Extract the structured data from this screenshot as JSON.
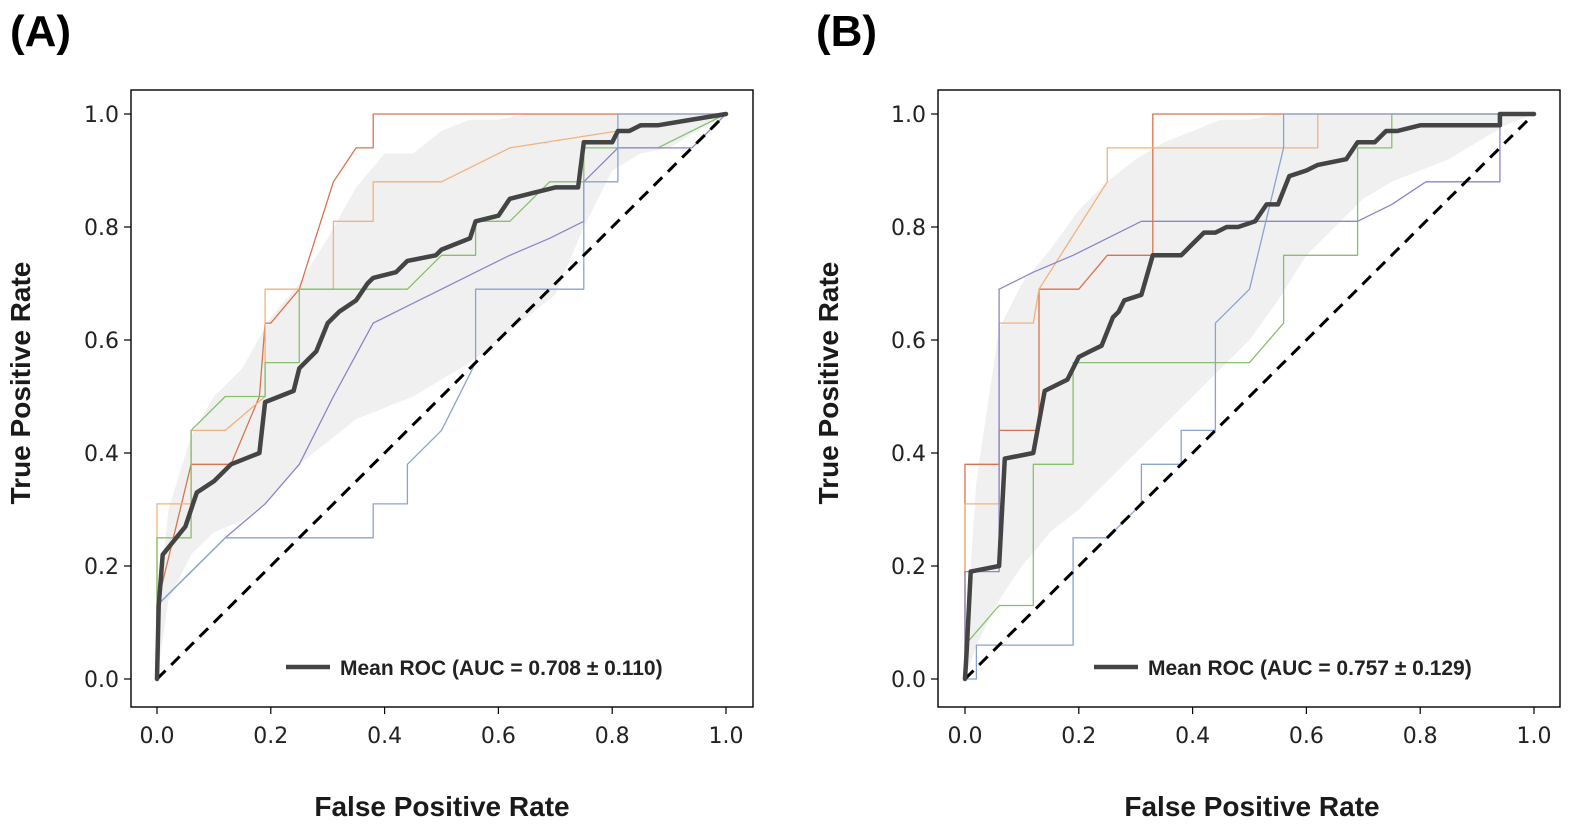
{
  "chart_data": [
    {
      "type": "line",
      "panel_label": "(A)",
      "xlabel": "False Positive Rate",
      "ylabel": "True Positive Rate",
      "xlim": [
        0,
        1
      ],
      "ylim": [
        0,
        1
      ],
      "xticks": [
        "0.0",
        "0.2",
        "0.4",
        "0.6",
        "0.8",
        "1.0"
      ],
      "yticks": [
        "0.0",
        "0.2",
        "0.4",
        "0.6",
        "0.8",
        "1.0"
      ],
      "grid": false,
      "legend_position": "bottom-right",
      "legend_label": "Mean ROC (AUC = 0.708 ± 0.110)",
      "mean_auc": 0.708,
      "std_auc": 0.11,
      "chance_line": {
        "x": [
          0,
          1
        ],
        "y": [
          0,
          1
        ],
        "style": "dashed",
        "color": "#000000"
      },
      "std_band": {
        "color": "#e6e6e6",
        "x": [
          0,
          0.02,
          0.06,
          0.1,
          0.15,
          0.2,
          0.25,
          0.3,
          0.35,
          0.4,
          0.45,
          0.5,
          0.55,
          0.6,
          0.65,
          0.7,
          0.75,
          0.8,
          0.85,
          0.9,
          0.95,
          1.0
        ],
        "upper": [
          0.1,
          0.3,
          0.43,
          0.5,
          0.55,
          0.64,
          0.7,
          0.78,
          0.87,
          0.93,
          0.93,
          0.97,
          0.99,
          0.99,
          1.0,
          1.0,
          1.0,
          1.0,
          1.0,
          1.0,
          1.0,
          1.0
        ],
        "lower": [
          0.0,
          0.14,
          0.22,
          0.26,
          0.28,
          0.32,
          0.38,
          0.42,
          0.46,
          0.48,
          0.5,
          0.53,
          0.56,
          0.6,
          0.64,
          0.68,
          0.8,
          0.9,
          0.93,
          0.94,
          0.97,
          1.0
        ]
      },
      "series": [
        {
          "name": "Mean ROC",
          "color": "#444444",
          "width": 4.5,
          "x": [
            0,
            0.003,
            0.01,
            0.05,
            0.07,
            0.1,
            0.13,
            0.18,
            0.19,
            0.24,
            0.25,
            0.28,
            0.3,
            0.32,
            0.35,
            0.37,
            0.38,
            0.42,
            0.44,
            0.49,
            0.5,
            0.55,
            0.56,
            0.6,
            0.62,
            0.66,
            0.7,
            0.74,
            0.75,
            0.76,
            0.8,
            0.81,
            0.83,
            0.85,
            0.88,
            0.94,
            1.0
          ],
          "y": [
            0,
            0.13,
            0.22,
            0.27,
            0.33,
            0.35,
            0.38,
            0.4,
            0.49,
            0.51,
            0.55,
            0.58,
            0.63,
            0.65,
            0.67,
            0.7,
            0.71,
            0.72,
            0.74,
            0.75,
            0.76,
            0.78,
            0.81,
            0.82,
            0.85,
            0.86,
            0.87,
            0.87,
            0.95,
            0.95,
            0.95,
            0.97,
            0.97,
            0.98,
            0.98,
            0.99,
            1.0
          ]
        },
        {
          "name": "fold-red",
          "color": "#d9734f",
          "width": 1.3,
          "x": [
            0,
            0,
            0.06,
            0.06,
            0.13,
            0.18,
            0.19,
            0.2,
            0.25,
            0.31,
            0.35,
            0.38,
            0.38,
            1.0
          ],
          "y": [
            0,
            0.13,
            0.38,
            0.38,
            0.38,
            0.5,
            0.63,
            0.63,
            0.69,
            0.88,
            0.94,
            0.94,
            1.0,
            1.0
          ]
        },
        {
          "name": "fold-orange",
          "color": "#f2b27a",
          "width": 1.3,
          "x": [
            0,
            0,
            0.06,
            0.06,
            0.12,
            0.19,
            0.19,
            0.31,
            0.31,
            0.38,
            0.38,
            0.5,
            0.62,
            0.62,
            1.0
          ],
          "y": [
            0,
            0.31,
            0.31,
            0.44,
            0.44,
            0.5,
            0.69,
            0.69,
            0.81,
            0.81,
            0.88,
            0.88,
            0.94,
            0.94,
            1.0
          ]
        },
        {
          "name": "fold-green",
          "color": "#86c06e",
          "width": 1.3,
          "x": [
            0,
            0,
            0.06,
            0.06,
            0.12,
            0.19,
            0.19,
            0.25,
            0.25,
            0.31,
            0.38,
            0.44,
            0.5,
            0.56,
            0.56,
            0.62,
            0.69,
            0.75,
            0.75,
            0.81,
            0.81,
            0.88,
            1.0
          ],
          "y": [
            0,
            0.25,
            0.25,
            0.44,
            0.5,
            0.5,
            0.56,
            0.56,
            0.69,
            0.69,
            0.69,
            0.69,
            0.75,
            0.75,
            0.81,
            0.81,
            0.88,
            0.88,
            0.94,
            0.94,
            0.94,
            0.94,
            1.0
          ]
        },
        {
          "name": "fold-purple",
          "color": "#8a86c8",
          "width": 1.3,
          "x": [
            0,
            0.0,
            0.12,
            0.19,
            0.25,
            0.31,
            0.38,
            0.44,
            0.5,
            0.56,
            0.62,
            0.69,
            0.75,
            0.75,
            0.81,
            0.94,
            1.0
          ],
          "y": [
            0,
            0.13,
            0.25,
            0.31,
            0.38,
            0.5,
            0.63,
            0.66,
            0.69,
            0.72,
            0.75,
            0.78,
            0.81,
            0.88,
            0.94,
            0.94,
            1.0
          ]
        },
        {
          "name": "fold-blue",
          "color": "#8aa3d0",
          "width": 1.3,
          "x": [
            0,
            0.0,
            0.12,
            0.12,
            0.38,
            0.38,
            0.44,
            0.44,
            0.5,
            0.5,
            0.56,
            0.56,
            0.62,
            0.62,
            0.75,
            0.75,
            0.81,
            0.81,
            1.0
          ],
          "y": [
            0,
            0.13,
            0.25,
            0.25,
            0.25,
            0.31,
            0.31,
            0.38,
            0.44,
            0.44,
            0.56,
            0.69,
            0.69,
            0.69,
            0.69,
            0.88,
            0.88,
            1.0,
            1.0
          ]
        }
      ]
    },
    {
      "type": "line",
      "panel_label": "(B)",
      "xlabel": "False Positive Rate",
      "ylabel": "True Positive Rate",
      "xlim": [
        0,
        1
      ],
      "ylim": [
        0,
        1
      ],
      "xticks": [
        "0.0",
        "0.2",
        "0.4",
        "0.6",
        "0.8",
        "1.0"
      ],
      "yticks": [
        "0.0",
        "0.2",
        "0.4",
        "0.6",
        "0.8",
        "1.0"
      ],
      "grid": false,
      "legend_position": "bottom-right",
      "legend_label": "Mean ROC (AUC = 0.757 ± 0.129)",
      "mean_auc": 0.757,
      "std_auc": 0.129,
      "chance_line": {
        "x": [
          0,
          1
        ],
        "y": [
          0,
          1
        ],
        "style": "dashed",
        "color": "#000000"
      },
      "std_band": {
        "color": "#e6e6e6",
        "x": [
          0,
          0.02,
          0.06,
          0.1,
          0.15,
          0.2,
          0.25,
          0.3,
          0.35,
          0.4,
          0.45,
          0.5,
          0.55,
          0.6,
          0.65,
          0.7,
          0.75,
          0.8,
          0.85,
          0.9,
          0.95,
          1.0
        ],
        "upper": [
          0.05,
          0.35,
          0.62,
          0.7,
          0.76,
          0.83,
          0.88,
          0.92,
          0.95,
          0.97,
          0.99,
          0.99,
          1.0,
          1.0,
          1.0,
          1.0,
          1.0,
          1.0,
          1.0,
          1.0,
          1.0,
          1.0
        ],
        "lower": [
          0.0,
          0.06,
          0.14,
          0.2,
          0.26,
          0.3,
          0.35,
          0.4,
          0.45,
          0.5,
          0.55,
          0.6,
          0.67,
          0.75,
          0.8,
          0.85,
          0.88,
          0.9,
          0.92,
          0.95,
          0.98,
          1.0
        ]
      },
      "series": [
        {
          "name": "Mean ROC",
          "color": "#444444",
          "width": 4.5,
          "x": [
            0,
            0.003,
            0.01,
            0.06,
            0.07,
            0.12,
            0.14,
            0.18,
            0.2,
            0.22,
            0.24,
            0.26,
            0.27,
            0.28,
            0.31,
            0.33,
            0.34,
            0.38,
            0.4,
            0.42,
            0.44,
            0.46,
            0.48,
            0.51,
            0.53,
            0.55,
            0.57,
            0.6,
            0.62,
            0.67,
            0.69,
            0.72,
            0.74,
            0.76,
            0.8,
            0.9,
            0.94,
            0.94,
            1.0
          ],
          "y": [
            0,
            0.05,
            0.19,
            0.2,
            0.39,
            0.4,
            0.51,
            0.53,
            0.57,
            0.58,
            0.59,
            0.64,
            0.65,
            0.67,
            0.68,
            0.75,
            0.75,
            0.75,
            0.77,
            0.79,
            0.79,
            0.8,
            0.8,
            0.81,
            0.84,
            0.84,
            0.89,
            0.9,
            0.91,
            0.92,
            0.95,
            0.95,
            0.97,
            0.97,
            0.98,
            0.98,
            0.98,
            1.0,
            1.0
          ]
        },
        {
          "name": "fold-red",
          "color": "#d9734f",
          "width": 1.3,
          "x": [
            0,
            0,
            0.06,
            0.06,
            0.13,
            0.13,
            0.2,
            0.25,
            0.33,
            0.33,
            1.0
          ],
          "y": [
            0,
            0.38,
            0.38,
            0.44,
            0.44,
            0.69,
            0.69,
            0.75,
            0.75,
            1.0,
            1.0
          ]
        },
        {
          "name": "fold-orange",
          "color": "#f2b27a",
          "width": 1.3,
          "x": [
            0,
            0,
            0.06,
            0.06,
            0.12,
            0.13,
            0.25,
            0.25,
            0.33,
            0.62,
            0.62,
            1.0
          ],
          "y": [
            0,
            0.31,
            0.31,
            0.63,
            0.63,
            0.69,
            0.88,
            0.94,
            0.94,
            0.94,
            1.0,
            1.0
          ]
        },
        {
          "name": "fold-green",
          "color": "#86c06e",
          "width": 1.3,
          "x": [
            0,
            0.0,
            0.06,
            0.12,
            0.12,
            0.19,
            0.19,
            0.5,
            0.56,
            0.56,
            0.69,
            0.69,
            0.75,
            0.75,
            1.0
          ],
          "y": [
            0,
            0.06,
            0.13,
            0.13,
            0.38,
            0.38,
            0.56,
            0.56,
            0.63,
            0.75,
            0.75,
            0.94,
            0.94,
            1.0,
            1.0
          ]
        },
        {
          "name": "fold-purple",
          "color": "#8a86c8",
          "width": 1.3,
          "x": [
            0,
            0,
            0.06,
            0.06,
            0.12,
            0.19,
            0.31,
            0.44,
            0.5,
            0.56,
            0.62,
            0.69,
            0.75,
            0.81,
            0.88,
            0.94,
            0.94,
            1.0
          ],
          "y": [
            0,
            0.19,
            0.19,
            0.69,
            0.72,
            0.75,
            0.81,
            0.81,
            0.81,
            0.81,
            0.81,
            0.81,
            0.84,
            0.88,
            0.88,
            0.88,
            1.0,
            1.0
          ]
        },
        {
          "name": "fold-blue",
          "color": "#8aa3d0",
          "width": 1.3,
          "x": [
            0,
            0,
            0.02,
            0.02,
            0.06,
            0.06,
            0.19,
            0.19,
            0.25,
            0.31,
            0.31,
            0.38,
            0.38,
            0.44,
            0.44,
            0.5,
            0.5,
            0.56,
            0.56,
            0.62,
            0.69,
            1.0
          ],
          "y": [
            0,
            0.0,
            0.0,
            0.06,
            0.06,
            0.06,
            0.06,
            0.25,
            0.25,
            0.31,
            0.38,
            0.38,
            0.44,
            0.44,
            0.63,
            0.69,
            0.69,
            0.94,
            1.0,
            1.0,
            1.0,
            1.0
          ]
        }
      ]
    }
  ]
}
